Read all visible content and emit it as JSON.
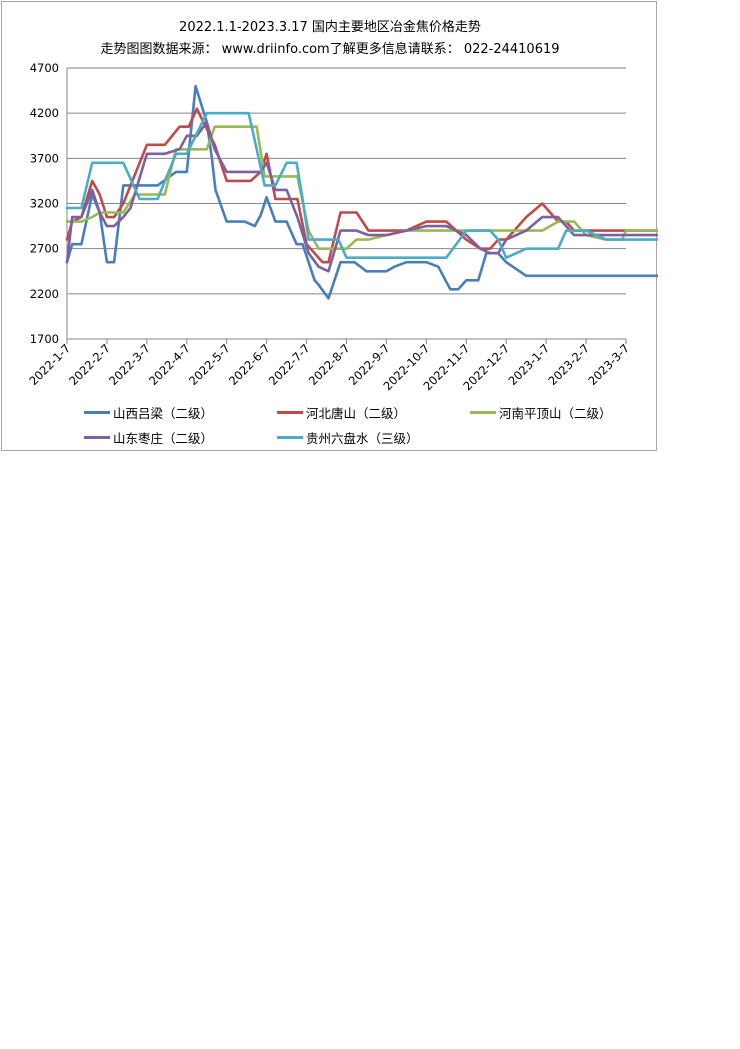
{
  "chart_data": {
    "type": "line",
    "title": "2022.1.1-2023.3.17  国内主要地区冶金焦价格走势",
    "subtitle": "走势图图数据来源： www.driinfo.com了解更多信息请联系： 022-24410619",
    "xlabel": "",
    "ylabel": "",
    "ylim": [
      1700,
      4700
    ],
    "yticks": [
      1700,
      2200,
      2700,
      3200,
      3700,
      4200,
      4700
    ],
    "grid": true,
    "legend_position": "bottom",
    "categories": [
      "2022-1-7",
      "2022-2-7",
      "2022-3-7",
      "2022-4-7",
      "2022-5-7",
      "2022-6-7",
      "2022-7-7",
      "2022-8-7",
      "2022-9-7",
      "2022-10-7",
      "2022-11-7",
      "2022-12-7",
      "2023-1-7",
      "2023-2-7",
      "2023-3-7"
    ],
    "series": [
      {
        "name": "山西吕梁（二级）",
        "color": "#4a7ebb",
        "x": [
          0,
          0.13,
          0.36,
          0.63,
          0.82,
          1.0,
          1.18,
          1.41,
          1.59,
          2.27,
          2.73,
          3.0,
          3.22,
          3.5,
          3.63,
          3.72,
          4.0,
          4.45,
          4.7,
          4.85,
          5.0,
          5.22,
          5.5,
          5.75,
          5.9,
          6.05,
          6.2,
          6.3,
          6.55,
          6.85,
          7.0,
          7.2,
          7.5,
          7.65,
          7.82,
          8.0,
          8.2,
          8.5,
          9.0,
          9.3,
          9.6,
          9.8,
          10.0,
          10.3,
          10.5,
          10.8,
          11.0,
          11.5,
          11.9,
          12.3,
          12.5,
          12.7,
          13.0,
          13.5,
          14.0,
          14.5,
          14.87
        ],
        "y": [
          2550,
          2750,
          2750,
          3300,
          3100,
          2550,
          2550,
          3400,
          3400,
          3400,
          3550,
          3550,
          4500,
          4100,
          3700,
          3350,
          3000,
          3000,
          2950,
          3070,
          3270,
          3000,
          3000,
          2750,
          2750,
          2550,
          2350,
          2300,
          2150,
          2550,
          2550,
          2550,
          2450,
          2450,
          2450,
          2450,
          2500,
          2550,
          2550,
          2500,
          2250,
          2250,
          2350,
          2350,
          2650,
          2650,
          2550,
          2400,
          2400,
          2400,
          2400,
          2400,
          2400,
          2400,
          2400,
          2400,
          2400
        ]
      },
      {
        "name": "河北唐山（二级）",
        "color": "#be4b48",
        "x": [
          0,
          0.13,
          0.36,
          0.63,
          0.82,
          1.0,
          1.18,
          1.41,
          2.0,
          2.45,
          2.82,
          3.05,
          3.25,
          3.7,
          4.0,
          4.6,
          4.85,
          5.0,
          5.22,
          5.5,
          5.77,
          6.0,
          6.4,
          6.55,
          6.85,
          7.0,
          7.25,
          7.55,
          8.0,
          8.5,
          9.0,
          9.5,
          10.0,
          10.35,
          10.6,
          10.8,
          11.0,
          11.5,
          11.9,
          12.3,
          12.5,
          12.7,
          13.0,
          13.5,
          14.0,
          14.5,
          14.87
        ],
        "y": [
          2800,
          3000,
          3050,
          3450,
          3300,
          3050,
          3050,
          3200,
          3850,
          3850,
          4050,
          4050,
          4250,
          3850,
          3450,
          3450,
          3550,
          3750,
          3250,
          3250,
          3250,
          2750,
          2550,
          2550,
          3100,
          3100,
          3100,
          2900,
          2900,
          2900,
          3000,
          3000,
          2800,
          2700,
          2700,
          2800,
          2800,
          3050,
          3200,
          3000,
          3000,
          2900,
          2900,
          2900,
          2900,
          2900,
          2900
        ]
      },
      {
        "name": "河南平顶山（二级）",
        "color": "#98b954",
        "x": [
          0,
          0.36,
          0.63,
          0.82,
          1.41,
          1.7,
          2.0,
          2.45,
          2.73,
          3.0,
          3.25,
          3.5,
          3.7,
          4.0,
          4.55,
          4.75,
          4.95,
          5.22,
          5.5,
          5.77,
          6.05,
          6.3,
          6.55,
          6.85,
          7.0,
          7.25,
          7.55,
          8.0,
          8.5,
          9.0,
          9.5,
          10.0,
          10.35,
          10.6,
          11.0,
          11.5,
          11.9,
          12.3,
          12.5,
          12.7,
          13.0,
          13.5,
          13.9,
          14.0,
          14.5,
          14.87
        ],
        "y": [
          3000,
          3000,
          3050,
          3100,
          3100,
          3300,
          3300,
          3300,
          3800,
          3800,
          3800,
          3800,
          4050,
          4050,
          4050,
          4050,
          3500,
          3500,
          3500,
          3500,
          2900,
          2700,
          2700,
          2700,
          2700,
          2800,
          2800,
          2850,
          2900,
          2900,
          2900,
          2900,
          2900,
          2900,
          2900,
          2900,
          2900,
          3000,
          3000,
          3000,
          2850,
          2800,
          2800,
          2900,
          2900,
          2900
        ]
      },
      {
        "name": "山东枣庄（二级）",
        "color": "#7d60a0",
        "x": [
          0,
          0.13,
          0.36,
          0.63,
          0.82,
          1.0,
          1.18,
          1.41,
          1.59,
          2.0,
          2.45,
          2.82,
          3.0,
          3.25,
          3.5,
          3.7,
          4.0,
          4.6,
          4.85,
          5.0,
          5.22,
          5.5,
          5.77,
          6.05,
          6.3,
          6.55,
          6.85,
          7.0,
          7.25,
          7.55,
          8.0,
          8.5,
          9.0,
          9.5,
          10.0,
          10.35,
          10.6,
          10.8,
          11.0,
          11.5,
          11.9,
          12.3,
          12.5,
          12.7,
          13.0,
          13.5,
          14.0,
          14.5,
          14.87
        ],
        "y": [
          2550,
          3050,
          3050,
          3350,
          3100,
          2950,
          2950,
          3050,
          3150,
          3750,
          3750,
          3800,
          3950,
          3950,
          4100,
          3800,
          3550,
          3550,
          3550,
          3650,
          3350,
          3350,
          3050,
          2650,
          2500,
          2450,
          2900,
          2900,
          2900,
          2850,
          2850,
          2900,
          2950,
          2950,
          2850,
          2700,
          2650,
          2650,
          2800,
          2900,
          3050,
          3050,
          2950,
          2850,
          2850,
          2850,
          2850,
          2850,
          2850
        ]
      },
      {
        "name": "贵州六盘水（三级）",
        "color": "#4bacc6",
        "x": [
          0,
          0.36,
          0.63,
          1.0,
          1.41,
          1.82,
          2.27,
          2.73,
          3.0,
          3.5,
          4.0,
          4.35,
          4.55,
          4.75,
          4.95,
          5.22,
          5.5,
          5.75,
          5.9,
          6.05,
          6.55,
          6.8,
          7.0,
          7.25,
          7.55,
          8.0,
          8.5,
          9.0,
          9.5,
          10.0,
          10.3,
          10.6,
          10.8,
          11.0,
          11.5,
          11.9,
          12.3,
          12.5,
          13.0,
          13.5,
          14.0,
          14.5,
          14.87
        ],
        "y": [
          3150,
          3150,
          3650,
          3650,
          3650,
          3250,
          3250,
          3750,
          3750,
          4200,
          4200,
          4200,
          4200,
          3800,
          3400,
          3400,
          3650,
          3650,
          3250,
          2800,
          2800,
          2800,
          2600,
          2600,
          2600,
          2600,
          2600,
          2600,
          2600,
          2900,
          2900,
          2900,
          2800,
          2600,
          2700,
          2700,
          2700,
          2900,
          2900,
          2800,
          2800,
          2800,
          2800
        ]
      }
    ]
  }
}
